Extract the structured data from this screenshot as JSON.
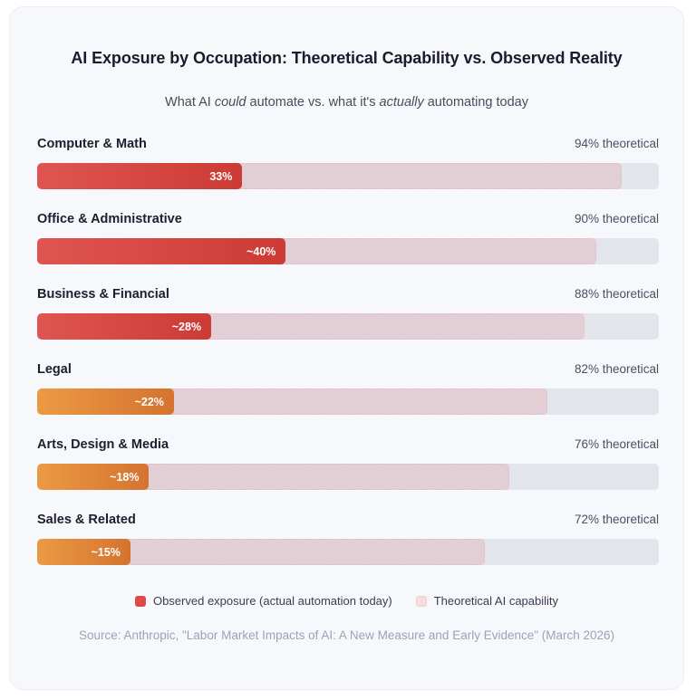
{
  "chart_data": {
    "type": "bar",
    "orientation": "horizontal",
    "title": "AI Exposure by Occupation: Theoretical Capability vs. Observed Reality",
    "subtitle_parts": [
      "What AI ",
      "could",
      " automate vs. what it's ",
      "actually",
      " automating today"
    ],
    "categories": [
      "Computer & Math",
      "Office & Administrative",
      "Business & Financial",
      "Legal",
      "Arts, Design & Media",
      "Sales & Related"
    ],
    "series": [
      {
        "name": "Theoretical AI capability",
        "values": [
          94,
          90,
          88,
          82,
          76,
          72
        ],
        "labels": [
          "94% theoretical",
          "90% theoretical",
          "88% theoretical",
          "82% theoretical",
          "76% theoretical",
          "72% theoretical"
        ],
        "color": "#e2cfd6"
      },
      {
        "name": "Observed exposure (actual automation today)",
        "values": [
          33,
          40,
          28,
          22,
          18,
          15
        ],
        "labels": [
          "33%",
          "~40%",
          "~28%",
          "~22%",
          "~18%",
          "~15%"
        ],
        "colors": [
          "red",
          "red",
          "red",
          "orange",
          "orange",
          "orange"
        ]
      }
    ],
    "xlim": [
      0,
      100
    ],
    "unit": "%",
    "legend": [
      "Observed exposure (actual automation today)",
      "Theoretical AI capability"
    ],
    "legend_position": "bottom-center",
    "source": "Source: Anthropic, \"Labor Market Impacts of AI: A New Measure and Early Evidence\" (March 2026)"
  },
  "colors": {
    "observed_red": "#dd4a47",
    "observed_orange": "#e08a3c",
    "theoretical": "#e2cfd6",
    "track": "#e2e5ec"
  }
}
